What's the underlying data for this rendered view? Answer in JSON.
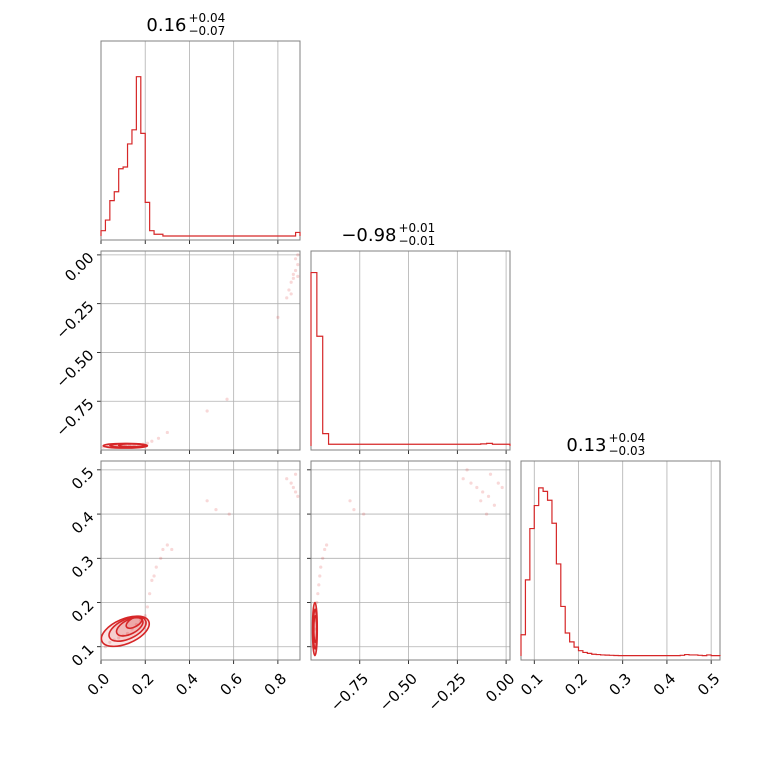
{
  "chart_data": {
    "type": "corner",
    "accent_color": "#d62728",
    "grid": true,
    "parameters": [
      {
        "title": "0.16",
        "plus": "+0.04",
        "minus": "−0.07",
        "range": [
          0.0,
          0.9
        ],
        "ticks": [
          0.0,
          0.2,
          0.4,
          0.6,
          0.8
        ],
        "tick_labels": [
          "0.0",
          "0.2",
          "0.4",
          "0.6",
          "0.8"
        ]
      },
      {
        "title": "−0.98",
        "plus": "+0.01",
        "minus": "−0.01",
        "range": [
          -1.0,
          0.02
        ],
        "ticks": [
          -0.75,
          -0.5,
          -0.25,
          0.0
        ],
        "tick_labels": [
          "−0.75",
          "−0.50",
          "−0.25",
          "0.00"
        ]
      },
      {
        "title": "0.13",
        "plus": "+0.04",
        "minus": "−0.03",
        "range": [
          0.07,
          0.52
        ],
        "ticks": [
          0.1,
          0.2,
          0.3,
          0.4,
          0.5
        ],
        "tick_labels": [
          "0.1",
          "0.2",
          "0.3",
          "0.4",
          "0.5"
        ]
      }
    ],
    "histograms": [
      {
        "param": 0,
        "bins": [
          0.0,
          0.02,
          0.04,
          0.06,
          0.08,
          0.1,
          0.12,
          0.14,
          0.16,
          0.18,
          0.2,
          0.22,
          0.24,
          0.26,
          0.28,
          0.3,
          0.32,
          0.34,
          0.36,
          0.38,
          0.4,
          0.42,
          0.44,
          0.46,
          0.48,
          0.5,
          0.52,
          0.54,
          0.56,
          0.58,
          0.6,
          0.62,
          0.64,
          0.66,
          0.68,
          0.7,
          0.72,
          0.74,
          0.76,
          0.78,
          0.8,
          0.82,
          0.84,
          0.86,
          0.88,
          0.9
        ],
        "counts": [
          0.03,
          0.09,
          0.2,
          0.25,
          0.38,
          0.39,
          0.52,
          0.6,
          0.9,
          0.58,
          0.19,
          0.03,
          0.01,
          0.01,
          0.0,
          0.0,
          0.0,
          0.0,
          0.0,
          0.0,
          0.0,
          0.0,
          0.0,
          0.0,
          0.0,
          0.0,
          0.0,
          0.0,
          0.0,
          0.0,
          0.0,
          0.0,
          0.0,
          0.0,
          0.0,
          0.0,
          0.0,
          0.0,
          0.0,
          0.0,
          0.0,
          0.0,
          0.0,
          0.0,
          0.02
        ]
      },
      {
        "param": 1,
        "bins": [
          -1.0,
          -0.97,
          -0.94,
          -0.91,
          -0.88,
          -0.85,
          -0.82,
          -0.79,
          -0.76,
          -0.73,
          -0.7,
          -0.67,
          -0.64,
          -0.61,
          -0.58,
          -0.55,
          -0.52,
          -0.49,
          -0.46,
          -0.43,
          -0.4,
          -0.37,
          -0.34,
          -0.31,
          -0.28,
          -0.25,
          -0.22,
          -0.19,
          -0.16,
          -0.13,
          -0.1,
          -0.07,
          -0.04,
          -0.01,
          0.02
        ],
        "counts": [
          0.98,
          0.62,
          0.07,
          0.01,
          0.01,
          0.01,
          0.01,
          0.01,
          0.01,
          0.01,
          0.01,
          0.01,
          0.01,
          0.01,
          0.01,
          0.01,
          0.01,
          0.01,
          0.01,
          0.01,
          0.01,
          0.01,
          0.01,
          0.01,
          0.01,
          0.01,
          0.01,
          0.01,
          0.01,
          0.012,
          0.015,
          0.01,
          0.01,
          0.01
        ]
      },
      {
        "param": 2,
        "bins": [
          0.07,
          0.08,
          0.09,
          0.1,
          0.11,
          0.12,
          0.13,
          0.14,
          0.15,
          0.16,
          0.17,
          0.18,
          0.19,
          0.2,
          0.21,
          0.22,
          0.23,
          0.24,
          0.25,
          0.26,
          0.27,
          0.28,
          0.29,
          0.3,
          0.31,
          0.32,
          0.33,
          0.34,
          0.35,
          0.36,
          0.37,
          0.38,
          0.39,
          0.4,
          0.41,
          0.42,
          0.43,
          0.44,
          0.45,
          0.46,
          0.47,
          0.48,
          0.49,
          0.5,
          0.51,
          0.52
        ],
        "counts": [
          0.12,
          0.43,
          0.72,
          0.85,
          0.95,
          0.93,
          0.88,
          0.75,
          0.52,
          0.28,
          0.13,
          0.08,
          0.05,
          0.03,
          0.02,
          0.015,
          0.01,
          0.008,
          0.006,
          0.005,
          0.004,
          0.003,
          0.002,
          0.002,
          0.002,
          0.002,
          0.002,
          0.002,
          0.002,
          0.002,
          0.002,
          0.002,
          0.002,
          0.002,
          0.002,
          0.002,
          0.004,
          0.008,
          0.006,
          0.006,
          0.004,
          0.002,
          0.006,
          0.002,
          0.002
        ]
      }
    ],
    "scatter": [
      {
        "x_param": 0,
        "y_param": 1,
        "points": [
          [
            0.01,
            -0.985
          ],
          [
            0.03,
            -0.983
          ],
          [
            0.05,
            -0.982
          ],
          [
            0.07,
            -0.981
          ],
          [
            0.09,
            -0.98
          ],
          [
            0.11,
            -0.979
          ],
          [
            0.13,
            -0.977
          ],
          [
            0.15,
            -0.975
          ],
          [
            0.17,
            -0.973
          ],
          [
            0.19,
            -0.97
          ],
          [
            0.21,
            -0.965
          ],
          [
            0.23,
            -0.955
          ],
          [
            0.26,
            -0.94
          ],
          [
            0.3,
            -0.91
          ],
          [
            0.48,
            -0.8
          ],
          [
            0.57,
            -0.74
          ],
          [
            0.8,
            -0.32
          ],
          [
            0.84,
            -0.22
          ],
          [
            0.85,
            -0.18
          ],
          [
            0.86,
            -0.14
          ],
          [
            0.87,
            -0.1
          ],
          [
            0.88,
            -0.08
          ],
          [
            0.89,
            -0.05
          ],
          [
            0.88,
            -0.02
          ],
          [
            0.89,
            0.0
          ],
          [
            0.87,
            -0.12
          ],
          [
            0.86,
            -0.2
          ],
          [
            0.89,
            -0.11
          ]
        ]
      },
      {
        "x_param": 0,
        "y_param": 2,
        "points": [
          [
            0.02,
            0.1
          ],
          [
            0.04,
            0.11
          ],
          [
            0.06,
            0.115
          ],
          [
            0.08,
            0.12
          ],
          [
            0.1,
            0.125
          ],
          [
            0.12,
            0.13
          ],
          [
            0.14,
            0.14
          ],
          [
            0.16,
            0.15
          ],
          [
            0.18,
            0.16
          ],
          [
            0.2,
            0.17
          ],
          [
            0.21,
            0.19
          ],
          [
            0.22,
            0.22
          ],
          [
            0.23,
            0.25
          ],
          [
            0.24,
            0.26
          ],
          [
            0.25,
            0.28
          ],
          [
            0.27,
            0.3
          ],
          [
            0.28,
            0.32
          ],
          [
            0.3,
            0.33
          ],
          [
            0.32,
            0.32
          ],
          [
            0.48,
            0.43
          ],
          [
            0.52,
            0.41
          ],
          [
            0.58,
            0.4
          ],
          [
            0.84,
            0.48
          ],
          [
            0.86,
            0.47
          ],
          [
            0.87,
            0.46
          ],
          [
            0.88,
            0.45
          ],
          [
            0.89,
            0.44
          ],
          [
            0.88,
            0.49
          ]
        ]
      },
      {
        "x_param": 1,
        "y_param": 2,
        "points": [
          [
            -0.99,
            0.1
          ],
          [
            -0.985,
            0.12
          ],
          [
            -0.98,
            0.14
          ],
          [
            -0.978,
            0.16
          ],
          [
            -0.975,
            0.18
          ],
          [
            -0.97,
            0.2
          ],
          [
            -0.965,
            0.22
          ],
          [
            -0.96,
            0.24
          ],
          [
            -0.955,
            0.26
          ],
          [
            -0.95,
            0.28
          ],
          [
            -0.94,
            0.3
          ],
          [
            -0.93,
            0.32
          ],
          [
            -0.92,
            0.33
          ],
          [
            -0.8,
            0.43
          ],
          [
            -0.78,
            0.41
          ],
          [
            -0.73,
            0.4
          ],
          [
            -0.22,
            0.48
          ],
          [
            -0.18,
            0.47
          ],
          [
            -0.15,
            0.46
          ],
          [
            -0.12,
            0.45
          ],
          [
            -0.09,
            0.44
          ],
          [
            -0.06,
            0.42
          ],
          [
            -0.04,
            0.47
          ],
          [
            -0.02,
            0.46
          ],
          [
            -0.13,
            0.43
          ],
          [
            -0.1,
            0.4
          ],
          [
            -0.2,
            0.5
          ],
          [
            -0.08,
            0.49
          ]
        ]
      }
    ],
    "contours": [
      {
        "x_param": 0,
        "y_param": 1,
        "ellipses": [
          {
            "cx": 0.11,
            "cy": -0.978,
            "rx": 0.1,
            "ry": 0.012,
            "angle_deg": 0
          },
          {
            "cx": 0.12,
            "cy": -0.977,
            "rx": 0.08,
            "ry": 0.009,
            "angle_deg": 0
          },
          {
            "cx": 0.14,
            "cy": -0.976,
            "rx": 0.06,
            "ry": 0.006,
            "angle_deg": 0
          }
        ]
      },
      {
        "x_param": 0,
        "y_param": 2,
        "ellipses": [
          {
            "cx": 0.11,
            "cy": 0.135,
            "rx": 0.115,
            "ry": 0.028,
            "angle_deg": 23
          },
          {
            "cx": 0.12,
            "cy": 0.14,
            "rx": 0.09,
            "ry": 0.022,
            "angle_deg": 25
          },
          {
            "cx": 0.13,
            "cy": 0.145,
            "rx": 0.065,
            "ry": 0.016,
            "angle_deg": 27
          },
          {
            "cx": 0.15,
            "cy": 0.155,
            "rx": 0.04,
            "ry": 0.01,
            "angle_deg": 30
          }
        ]
      },
      {
        "x_param": 1,
        "y_param": 2,
        "ellipses": [
          {
            "cx": -0.98,
            "cy": 0.14,
            "rx": 0.012,
            "ry": 0.06,
            "angle_deg": 0
          },
          {
            "cx": -0.979,
            "cy": 0.14,
            "rx": 0.009,
            "ry": 0.045,
            "angle_deg": 0
          },
          {
            "cx": -0.978,
            "cy": 0.14,
            "rx": 0.006,
            "ry": 0.03,
            "angle_deg": 0
          }
        ]
      }
    ]
  }
}
